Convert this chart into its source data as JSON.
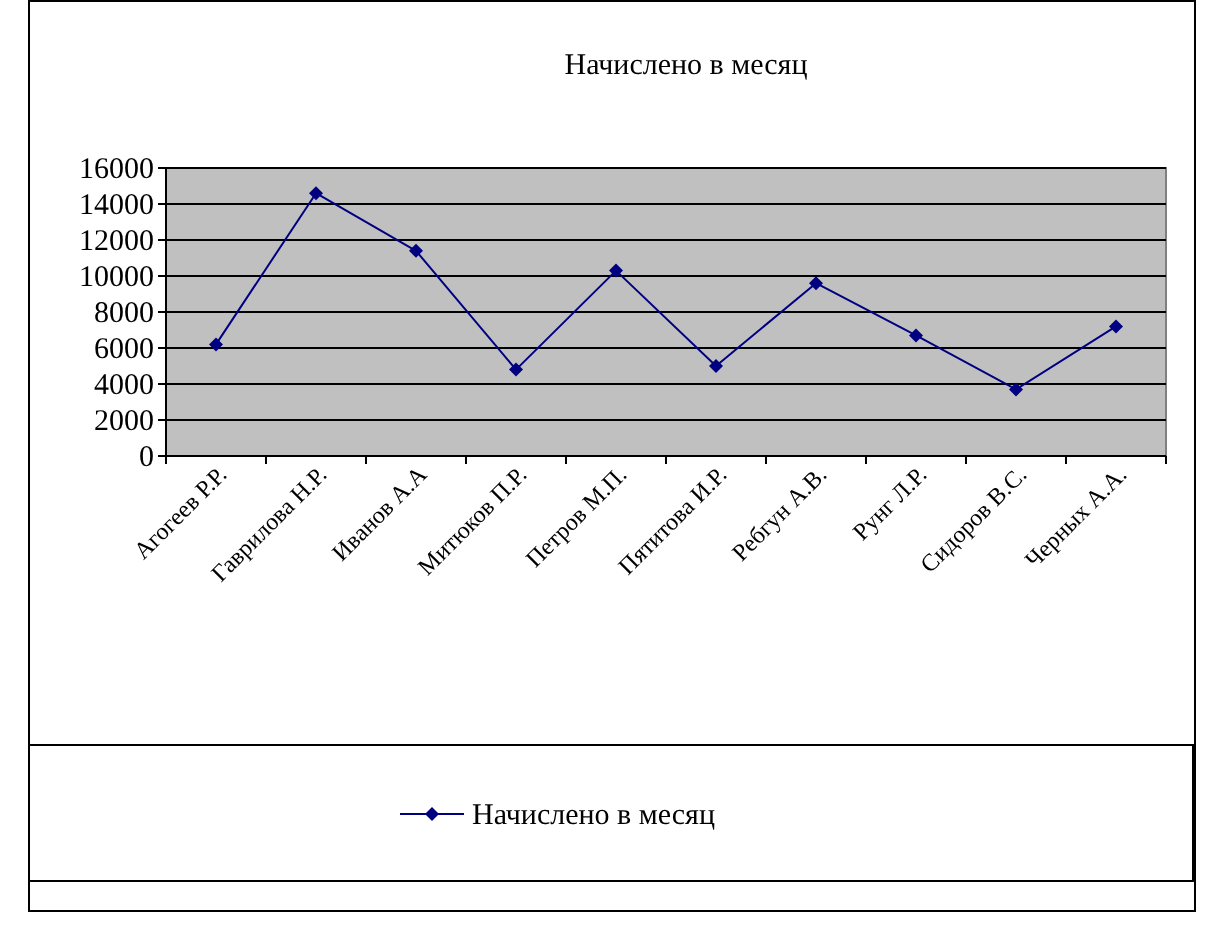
{
  "chart_data": {
    "type": "line",
    "title": "Начислено в месяц",
    "categories": [
      "Агогеев Р.Р.",
      "Гаврилова Н.Р.",
      "Иванов А.А",
      "Митюков П.Р.",
      "Петров М.П.",
      "Пятитова И.Р.",
      "Ребгун А.В.",
      "Рунг Л.Р.",
      "Сидоров В.С.",
      "Черных А.А."
    ],
    "series": [
      {
        "name": "Начислено в месяц",
        "color": "#000080",
        "values": [
          6200,
          14600,
          11400,
          4800,
          10300,
          5000,
          9600,
          6700,
          3700,
          7200
        ]
      }
    ],
    "ylim": [
      0,
      16000
    ],
    "yticks": [
      0,
      2000,
      4000,
      6000,
      8000,
      10000,
      12000,
      14000,
      16000
    ],
    "grid": "y",
    "legend": "bottom",
    "marker": "diamond"
  }
}
